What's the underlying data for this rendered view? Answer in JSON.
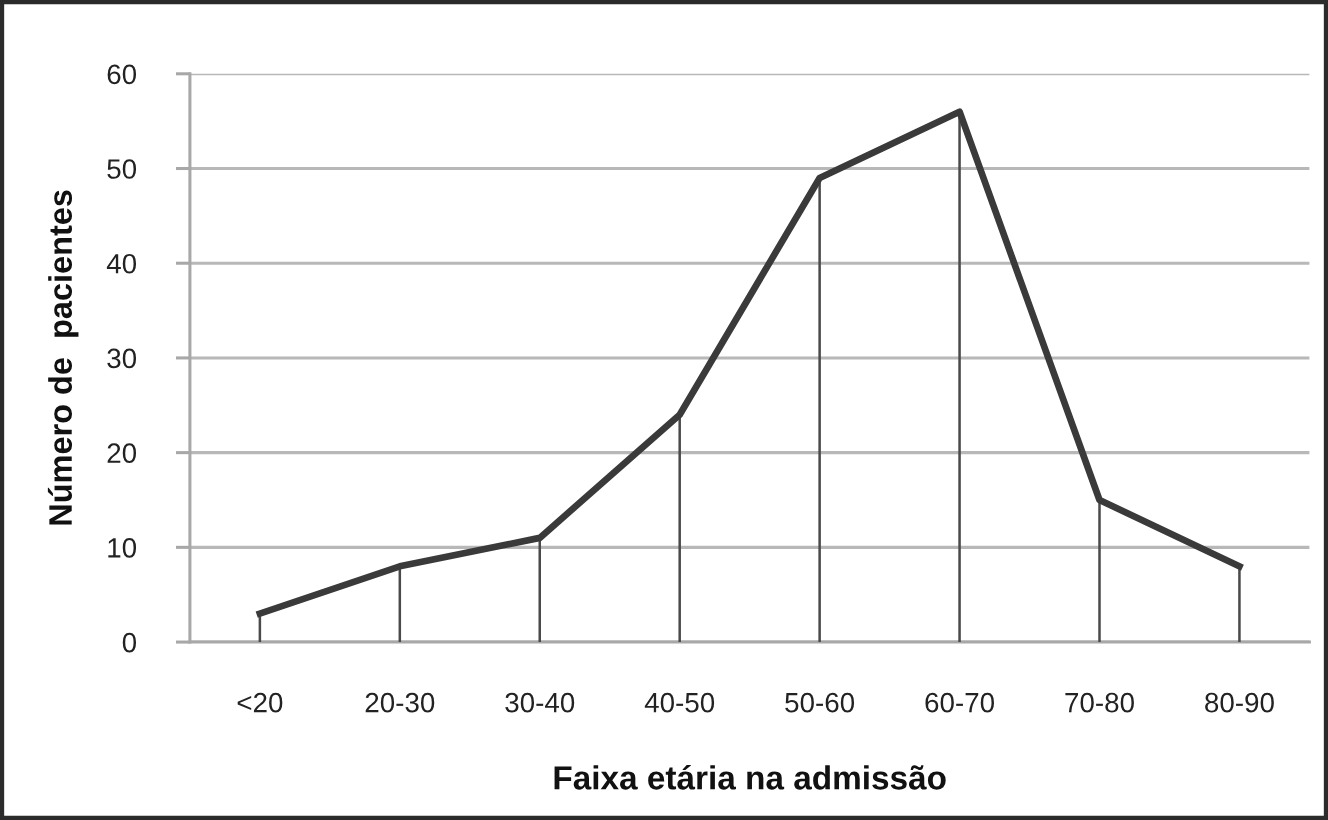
{
  "chart_data": {
    "type": "line",
    "xlabel": "Faixa etária na admissão",
    "ylabel": "Número de  pacientes",
    "categories": [
      "<20",
      "20-30",
      "30-40",
      "40-50",
      "50-60",
      "60-70",
      "70-80",
      "80-90"
    ],
    "series": [
      {
        "color": "#3a3a3a",
        "values": [
          3,
          8,
          11,
          24,
          49,
          56,
          15,
          8
        ]
      },
      {
        "type": "bar",
        "color": "#4a4a4a",
        "values": [
          3,
          8,
          11,
          24,
          49,
          56,
          15,
          8
        ]
      }
    ],
    "ylim": [
      0,
      60
    ],
    "yticks": [
      0,
      10,
      20,
      30,
      40,
      50,
      60
    ],
    "grid": "y",
    "line_style": "solid"
  }
}
